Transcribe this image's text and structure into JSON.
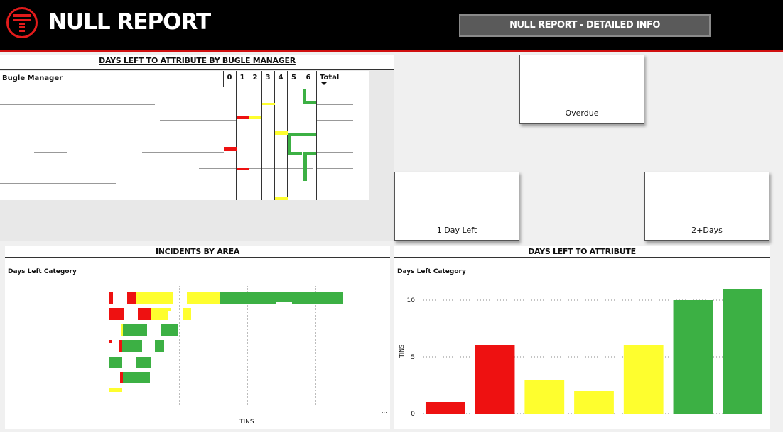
{
  "app": {
    "title": "NULL REPORT",
    "detail_button": "NULL REPORT - DETAILED INFO"
  },
  "colors": {
    "red": "#ee1111",
    "yellow": "#fefe2e",
    "green": "#3cb044"
  },
  "manager_table": {
    "title": "DAYS LEFT TO ATTRIBUTE BY BUGLE MANAGER",
    "row_header": "Bugle Manager",
    "columns": [
      "0",
      "1",
      "2",
      "3",
      "4",
      "5",
      "6",
      "Total"
    ]
  },
  "cards": {
    "overdue": "Overdue",
    "one_day": "1 Day Left",
    "two_plus": "2+Days"
  },
  "incidents_by_area": {
    "title": "INCIDENTS BY AREA",
    "legend_label": "Days Left Category",
    "xlabel": "TINS",
    "axis_tick": "..."
  },
  "chart_data": {
    "type": "bar",
    "title": "DAYS LEFT TO ATTRIBUTE",
    "legend_label": "Days Left Category",
    "xlabel": "",
    "ylabel": "TINS",
    "ylim": [
      0,
      11
    ],
    "yticks": [
      0,
      5,
      10
    ],
    "categories": [
      "",
      "",
      "",
      "",
      "",
      "",
      ""
    ],
    "values": [
      1,
      6,
      3,
      2,
      6,
      10,
      11
    ],
    "bar_colors": [
      "#ee1111",
      "#ee1111",
      "#fefe2e",
      "#fefe2e",
      "#fefe2e",
      "#3cb044",
      "#3cb044"
    ],
    "grid": true
  }
}
